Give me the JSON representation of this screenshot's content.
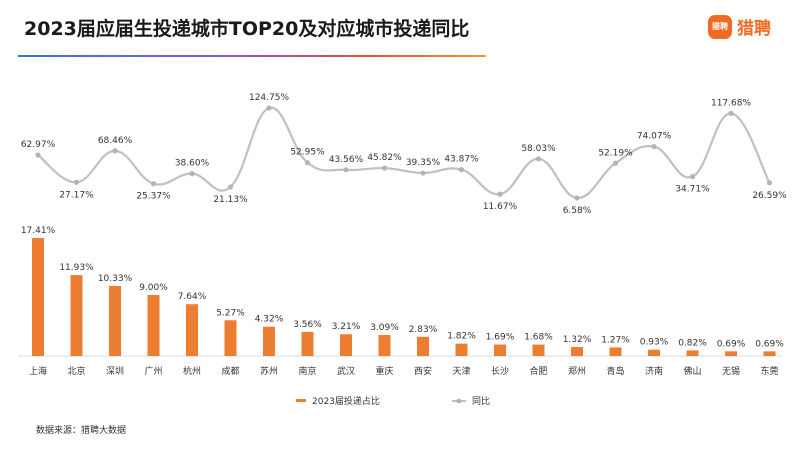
{
  "title": "2023届应届生投递城市TOP20及对应城市投递同比",
  "logo": {
    "mark_text": "猎聘",
    "text": "猎聘"
  },
  "source": "数据来源：猎聘大数据",
  "colors": {
    "bar": "#ed7d31",
    "line": "#c0c0c0",
    "marker": "#b4b4b4",
    "text": "#333333",
    "axis": "#d9d9d9"
  },
  "chart_data": {
    "type": "bar+line",
    "categories": [
      "上海",
      "北京",
      "深圳",
      "广州",
      "杭州",
      "成都",
      "苏州",
      "南京",
      "武汉",
      "重庆",
      "西安",
      "天津",
      "长沙",
      "合肥",
      "郑州",
      "青岛",
      "济南",
      "佛山",
      "无锡",
      "东莞"
    ],
    "series": [
      {
        "name": "2023届投递占比",
        "type": "bar",
        "unit": "%",
        "values": [
          17.41,
          11.93,
          10.33,
          9.0,
          7.64,
          5.27,
          4.32,
          3.56,
          3.21,
          3.09,
          2.83,
          1.82,
          1.69,
          1.68,
          1.32,
          1.27,
          0.93,
          0.82,
          0.69,
          0.69
        ],
        "labels": [
          "17.41%",
          "11.93%",
          "10.33%",
          "9.00%",
          "7.64%",
          "5.27%",
          "4.32%",
          "3.56%",
          "3.21%",
          "3.09%",
          "2.83%",
          "1.82%",
          "1.69%",
          "1.68%",
          "1.32%",
          "1.27%",
          "0.93%",
          "0.82%",
          "0.69%",
          "0.69%"
        ]
      },
      {
        "name": "同比",
        "type": "line",
        "unit": "%",
        "values": [
          62.97,
          27.17,
          68.46,
          25.37,
          38.6,
          21.13,
          124.75,
          52.95,
          43.56,
          45.82,
          39.35,
          43.87,
          11.67,
          58.03,
          6.58,
          52.19,
          74.07,
          34.71,
          117.68,
          26.59
        ],
        "labels": [
          "62.97%",
          "27.17%",
          "68.46%",
          "25.37%",
          "38.60%",
          "21.13%",
          "124.75%",
          "52.95%",
          "43.56%",
          "45.82%",
          "39.35%",
          "43.87%",
          "11.67%",
          "58.03%",
          "6.58%",
          "52.19%",
          "74.07%",
          "34.71%",
          "117.68%",
          "26.59%"
        ],
        "label_side": [
          "above",
          "below",
          "above",
          "below",
          "above",
          "below",
          "above",
          "above",
          "above",
          "above",
          "above",
          "above",
          "below",
          "above",
          "below",
          "above",
          "above",
          "below",
          "above",
          "below"
        ]
      }
    ],
    "legend": [
      "2023届投递占比",
      "同比"
    ],
    "legend_position": "bottom"
  }
}
